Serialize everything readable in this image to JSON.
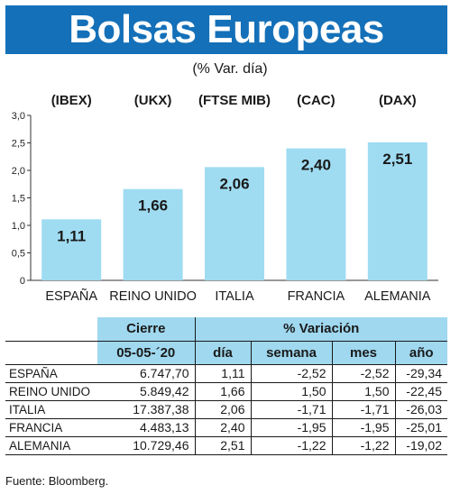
{
  "header": {
    "title": "Bolsas Europeas",
    "subtitle": "(% Var. día)"
  },
  "chart_data": {
    "type": "bar",
    "title": "Bolsas Europeas",
    "subtitle": "(% Var. día)",
    "categories": [
      "ESPAÑA",
      "REINO UNIDO",
      "ITALIA",
      "FRANCIA",
      "ALEMANIA"
    ],
    "indices": [
      "(IBEX)",
      "(UKX)",
      "(FTSE MIB)",
      "(CAC)",
      "(DAX)"
    ],
    "values": [
      1.11,
      1.66,
      2.06,
      2.4,
      2.51
    ],
    "value_labels": [
      "1,11",
      "1,66",
      "2,06",
      "2,40",
      "2,51"
    ],
    "yticks": [
      "0",
      "0,5",
      "1,0",
      "1,5",
      "2,0",
      "2,5",
      "3,0"
    ],
    "ylim": [
      0,
      3
    ],
    "bar_color": "#9fdcf2",
    "grid": false
  },
  "table": {
    "header_row1": {
      "cierre": "Cierre",
      "variacion": "% Variación"
    },
    "header_row2": {
      "date": "05-05-´20",
      "dia": "día",
      "semana": "semana",
      "mes": "mes",
      "ano": "año"
    },
    "rows": [
      {
        "name": "ESPAÑA",
        "cierre": "6.747,70",
        "dia": "1,11",
        "semana": "-2,52",
        "mes": "-2,52",
        "ano": "-29,34"
      },
      {
        "name": "REINO UNIDO",
        "cierre": "5.849,42",
        "dia": "1,66",
        "semana": "1,50",
        "mes": "1,50",
        "ano": "-22,45"
      },
      {
        "name": "ITALIA",
        "cierre": "17.387,38",
        "dia": "2,06",
        "semana": "-1,71",
        "mes": "-1,71",
        "ano": "-26,03"
      },
      {
        "name": "FRANCIA",
        "cierre": "4.483,13",
        "dia": "2,40",
        "semana": "-1,95",
        "mes": "-1,95",
        "ano": "-25,01"
      },
      {
        "name": "ALEMANIA",
        "cierre": "10.729,46",
        "dia": "2,51",
        "semana": "-1,22",
        "mes": "-1,22",
        "ano": "-19,02"
      }
    ]
  },
  "source": "Fuente: Bloomberg.",
  "colors": {
    "title_bg": "#1470b8",
    "header_bg": "#9fd8ef",
    "bar": "#9fdcf2"
  }
}
